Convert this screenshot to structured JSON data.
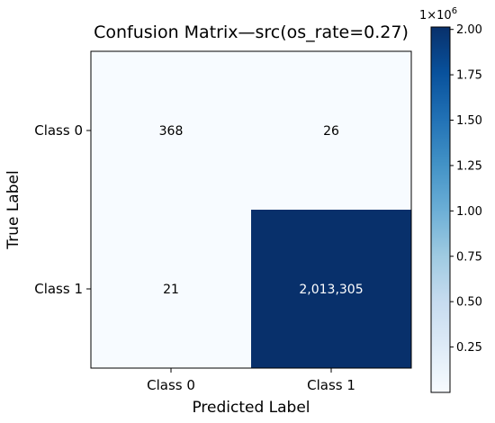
{
  "chart_data": {
    "type": "heatmap",
    "title": "Confusion Matrix—src(os_rate=0.27)",
    "xlabel": "Predicted Label",
    "ylabel": "True Label",
    "x_categories": [
      "Class 0",
      "Class 1"
    ],
    "y_categories": [
      "Class 0",
      "Class 1"
    ],
    "values": [
      [
        368,
        26
      ],
      [
        21,
        2013305
      ]
    ],
    "cell_labels": [
      [
        "368",
        "26"
      ],
      [
        "21",
        "2,013,305"
      ]
    ],
    "colormap": "Blues",
    "colors": {
      "low": "#f7fbff",
      "high": "#08306b",
      "text_dark": "#000000",
      "text_light": "#ffffff"
    },
    "colorbar": {
      "ticks": [
        0.25,
        0.5,
        0.75,
        1.0,
        1.25,
        1.5,
        1.75,
        2.0
      ],
      "tick_labels": [
        "0.25",
        "0.50",
        "0.75",
        "1.00",
        "1.25",
        "1.50",
        "1.75",
        "2.00"
      ],
      "multiplier_label": "1×10",
      "multiplier_exponent": "6",
      "range": [
        0.0,
        2.013305
      ]
    }
  }
}
